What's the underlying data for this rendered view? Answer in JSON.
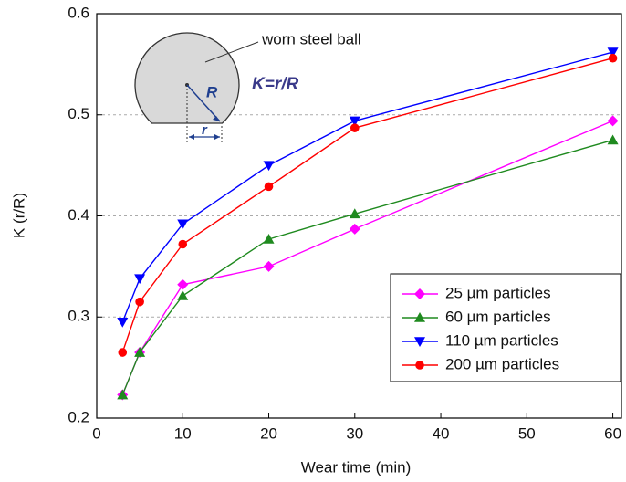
{
  "chart_data": {
    "type": "line",
    "x_label": "Wear time (min)",
    "y_label": "K (r/R)",
    "xlim": [
      0,
      61
    ],
    "xticks": [
      0,
      10,
      20,
      30,
      40,
      50,
      60
    ],
    "ylim": [
      0.2,
      0.6
    ],
    "yticks": [
      0.2,
      0.3,
      0.4,
      0.5,
      0.6
    ],
    "grid": true,
    "legend_position": "lower right",
    "annotations": {
      "ball": "worn steel ball",
      "big_r": "R",
      "small_r": "r",
      "formula": "K=r/R"
    },
    "x": [
      3,
      5,
      10,
      20,
      30,
      60
    ],
    "series": [
      {
        "name": "25 µm  particles",
        "color": "#ff00ff",
        "marker": "diamond",
        "values": [
          0.223,
          0.265,
          0.332,
          0.35,
          0.387,
          0.494
        ]
      },
      {
        "name": "60 µm  particles",
        "color": "#1f8a1f",
        "marker": "triangle-up",
        "values": [
          0.223,
          0.265,
          0.321,
          0.377,
          0.402,
          0.475
        ]
      },
      {
        "name": "110 µm particles",
        "color": "#0000ff",
        "marker": "triangle-down",
        "values": [
          0.295,
          0.338,
          0.392,
          0.45,
          0.494,
          0.562
        ]
      },
      {
        "name": "200 µm particles",
        "color": "#ff0000",
        "marker": "circle",
        "values": [
          0.265,
          0.315,
          0.372,
          0.429,
          0.487,
          0.556
        ]
      }
    ]
  }
}
